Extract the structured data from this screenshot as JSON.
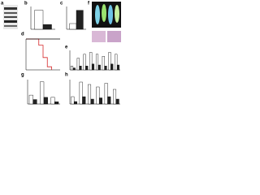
{
  "panels": [
    {
      "label": "a"
    },
    {
      "label": "b",
      "type": "bar",
      "ylim": [
        0,
        1.2
      ],
      "series": [
        {
          "color": "#ffffff",
          "values": [
            1.0
          ]
        },
        {
          "color": "#222222",
          "values": [
            0.25
          ]
        }
      ]
    },
    {
      "label": "c",
      "type": "bar",
      "ylim": [
        0,
        1.2
      ],
      "series": [
        {
          "color": "#ffffff",
          "values": [
            0.3
          ]
        },
        {
          "color": "#222222",
          "values": [
            1.0
          ]
        }
      ]
    },
    {
      "label": "d",
      "type": "line",
      "xlim": [
        0,
        40
      ],
      "ylim": [
        0,
        100
      ],
      "series": [
        {
          "color": "#d62728",
          "x": [
            0,
            10,
            15,
            20,
            25,
            30
          ],
          "values": [
            100,
            100,
            80,
            40,
            10,
            0
          ]
        },
        {
          "color": "#000000",
          "x": [
            0,
            30,
            40
          ],
          "values": [
            100,
            100,
            100
          ]
        }
      ]
    },
    {
      "label": "e",
      "type": "bar",
      "ylim": [
        0,
        1
      ],
      "series": [
        {
          "color": "#ffffff",
          "values": [
            0.2,
            0.6,
            0.8,
            0.9,
            0.8,
            0.7,
            0.9,
            0.8
          ]
        },
        {
          "color": "#222222",
          "values": [
            0.1,
            0.2,
            0.2,
            0.3,
            0.25,
            0.2,
            0.3,
            0.25
          ]
        }
      ]
    },
    {
      "label": "f"
    },
    {
      "label": "g",
      "type": "bar",
      "ylim": [
        0,
        1.1
      ],
      "series": [
        {
          "color": "#ffffff",
          "values": [
            0.4,
            1.0,
            0.3
          ]
        },
        {
          "color": "#222222",
          "values": [
            0.2,
            0.3,
            0.1
          ]
        }
      ]
    },
    {
      "label": "h",
      "type": "bar",
      "ylim": [
        0,
        1
      ],
      "series": [
        {
          "color": "#ffffff",
          "values": [
            0.3,
            0.9,
            0.8,
            0.7,
            0.85,
            0.6
          ]
        },
        {
          "color": "#222222",
          "values": [
            0.1,
            0.3,
            0.2,
            0.25,
            0.3,
            0.2
          ]
        }
      ]
    }
  ]
}
